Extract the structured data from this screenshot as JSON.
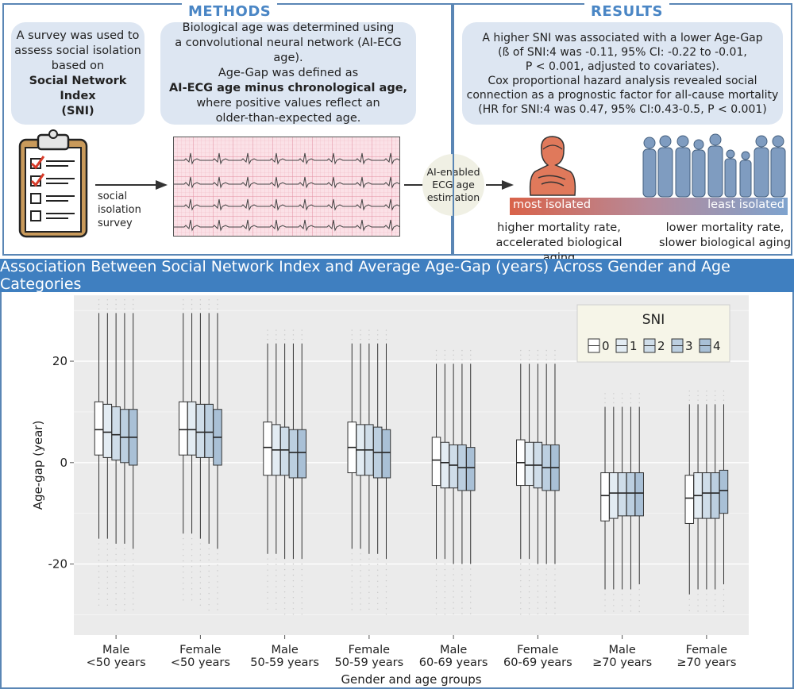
{
  "methods": {
    "title": "METHODS",
    "box1_lines": [
      "A survey was used to",
      "assess social isolation",
      "based on",
      "Social Network Index",
      "(SNI)"
    ],
    "box2_lines": [
      "Biological age was determined using",
      "a convolutional neural network (AI-ECG age).",
      "Age-Gap was defined as",
      "AI-ECG age minus chronological age,",
      "where positive values reflect an",
      "older-than-expected age."
    ],
    "survey_label": [
      "social",
      "isolation",
      "survey"
    ],
    "ai_label": [
      "AI-enabled",
      "ECG age",
      "estimation"
    ]
  },
  "results": {
    "title": "RESULTS",
    "box_lines": [
      "A higher SNI was associated with a lower Age-Gap",
      "(ß of SNI:4 was -0.11, 95%  CI: -0.22 to -0.01,",
      "P < 0.001, adjusted to covariates).",
      "Cox proportional hazard analysis revealed social",
      "connection as a prognostic factor for all-cause mortality",
      "(HR for SNI:4 was 0.47, 95%  CI:0.43-0.5, P < 0.001)"
    ],
    "most_isolated": "most isolated",
    "least_isolated": "least isolated",
    "left_outcome": [
      "higher mortality rate,",
      "accelerated biological aging"
    ],
    "right_outcome": [
      "lower mortality rate,",
      "slower biological aging"
    ]
  },
  "banner": "Association Between Social Network Index and Average Age-Gap (years) Across Gender and Age Categories",
  "colors": {
    "accent": "#3f7fc0",
    "box_fills": [
      "#ffffff",
      "#e3ecf3",
      "#cfdde9",
      "#bccfe0",
      "#a9c0d6"
    ]
  },
  "chart_data": {
    "type": "boxplot",
    "xlabel": "Gender and age groups",
    "ylabel": "Age-gap (year)",
    "ylim": [
      -34,
      33
    ],
    "yticks": [
      -20,
      0,
      20
    ],
    "legend_title": "SNI",
    "legend_position": "top-right",
    "series_names": [
      "0",
      "1",
      "2",
      "3",
      "4"
    ],
    "categories": [
      [
        "Male",
        "<50 years"
      ],
      [
        "Female",
        "<50 years"
      ],
      [
        "Male",
        "50-59 years"
      ],
      [
        "Female",
        "50-59 years"
      ],
      [
        "Male",
        "60-69 years"
      ],
      [
        "Female",
        "60-69 years"
      ],
      [
        "Male",
        "≥70 years"
      ],
      [
        "Female",
        "≥70 years"
      ]
    ],
    "groups": [
      {
        "boxes": [
          {
            "lw": -15,
            "q1": 1.5,
            "med": 6.5,
            "q3": 12,
            "uw": 29.5
          },
          {
            "lw": -15,
            "q1": 1,
            "med": 6,
            "q3": 11.5,
            "uw": 29.5
          },
          {
            "lw": -16,
            "q1": 0.5,
            "med": 5.5,
            "q3": 11,
            "uw": 29.5
          },
          {
            "lw": -16,
            "q1": 0,
            "med": 5,
            "q3": 10.5,
            "uw": 29.5
          },
          {
            "lw": -17,
            "q1": -0.5,
            "med": 5,
            "q3": 10.5,
            "uw": 29.5
          }
        ]
      },
      {
        "boxes": [
          {
            "lw": -14,
            "q1": 1.5,
            "med": 6.5,
            "q3": 12,
            "uw": 29.5
          },
          {
            "lw": -14,
            "q1": 1.5,
            "med": 6.5,
            "q3": 12,
            "uw": 29.5
          },
          {
            "lw": -15,
            "q1": 1,
            "med": 6,
            "q3": 11.5,
            "uw": 29.5
          },
          {
            "lw": -16,
            "q1": 1,
            "med": 6,
            "q3": 11.5,
            "uw": 29.5
          },
          {
            "lw": -17,
            "q1": -0.5,
            "med": 5,
            "q3": 10.5,
            "uw": 29.5
          }
        ]
      },
      {
        "boxes": [
          {
            "lw": -18,
            "q1": -2.5,
            "med": 3,
            "q3": 8,
            "uw": 23.5
          },
          {
            "lw": -18,
            "q1": -2.5,
            "med": 2.5,
            "q3": 7.5,
            "uw": 23.5
          },
          {
            "lw": -19,
            "q1": -2.5,
            "med": 2.5,
            "q3": 7,
            "uw": 23.5
          },
          {
            "lw": -19,
            "q1": -3,
            "med": 2,
            "q3": 6.5,
            "uw": 23.5
          },
          {
            "lw": -19,
            "q1": -3,
            "med": 2,
            "q3": 6.5,
            "uw": 23.5
          }
        ]
      },
      {
        "boxes": [
          {
            "lw": -17,
            "q1": -2,
            "med": 3,
            "q3": 8,
            "uw": 23.5
          },
          {
            "lw": -17,
            "q1": -2.5,
            "med": 2.5,
            "q3": 7.5,
            "uw": 23.5
          },
          {
            "lw": -18,
            "q1": -2.5,
            "med": 2.5,
            "q3": 7.5,
            "uw": 23.5
          },
          {
            "lw": -18,
            "q1": -3,
            "med": 2,
            "q3": 7,
            "uw": 23.5
          },
          {
            "lw": -19,
            "q1": -3,
            "med": 2,
            "q3": 6.5,
            "uw": 23.5
          }
        ]
      },
      {
        "boxes": [
          {
            "lw": -19,
            "q1": -4.5,
            "med": 0.5,
            "q3": 5,
            "uw": 19.5
          },
          {
            "lw": -19,
            "q1": -5,
            "med": 0,
            "q3": 4,
            "uw": 19.5
          },
          {
            "lw": -20,
            "q1": -5,
            "med": -0.5,
            "q3": 3.5,
            "uw": 19.5
          },
          {
            "lw": -20,
            "q1": -5.5,
            "med": -1,
            "q3": 3.5,
            "uw": 19.5
          },
          {
            "lw": -20,
            "q1": -5.5,
            "med": -1,
            "q3": 3,
            "uw": 19.5
          }
        ]
      },
      {
        "boxes": [
          {
            "lw": -19,
            "q1": -4.5,
            "med": 0,
            "q3": 4.5,
            "uw": 19.5
          },
          {
            "lw": -19,
            "q1": -4.5,
            "med": -0.5,
            "q3": 4,
            "uw": 19.5
          },
          {
            "lw": -20,
            "q1": -5,
            "med": -0.5,
            "q3": 4,
            "uw": 19.5
          },
          {
            "lw": -20,
            "q1": -5.5,
            "med": -1,
            "q3": 3.5,
            "uw": 19.5
          },
          {
            "lw": -20,
            "q1": -5.5,
            "med": -1,
            "q3": 3.5,
            "uw": 19.5
          }
        ]
      },
      {
        "boxes": [
          {
            "lw": -25,
            "q1": -11.5,
            "med": -6.5,
            "q3": -2,
            "uw": 11
          },
          {
            "lw": -25,
            "q1": -11,
            "med": -6,
            "q3": -2,
            "uw": 11
          },
          {
            "lw": -25,
            "q1": -10.5,
            "med": -6,
            "q3": -2,
            "uw": 11
          },
          {
            "lw": -25,
            "q1": -10.5,
            "med": -6,
            "q3": -2,
            "uw": 11
          },
          {
            "lw": -24,
            "q1": -10.5,
            "med": -6,
            "q3": -2,
            "uw": 11
          }
        ]
      },
      {
        "boxes": [
          {
            "lw": -26,
            "q1": -12,
            "med": -7,
            "q3": -2.5,
            "uw": 11.5
          },
          {
            "lw": -25,
            "q1": -11,
            "med": -6.5,
            "q3": -2,
            "uw": 11.5
          },
          {
            "lw": -25,
            "q1": -11,
            "med": -6,
            "q3": -2,
            "uw": 11.5
          },
          {
            "lw": -25,
            "q1": -11,
            "med": -6,
            "q3": -2,
            "uw": 11.5
          },
          {
            "lw": -24,
            "q1": -10,
            "med": -5.5,
            "q3": -1.5,
            "uw": 11.5
          }
        ]
      }
    ]
  }
}
